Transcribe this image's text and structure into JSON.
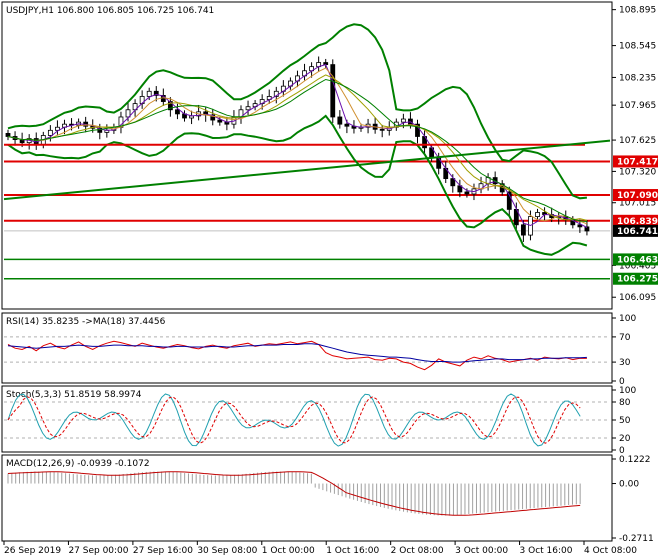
{
  "chart_data": [
    {
      "type": "candlestick",
      "title": "USDJPY,H1  106.800 106.805 106.725 106.741",
      "ylim": [
        105.99,
        108.95
      ],
      "y_ticks": [
        "108.895",
        "108.545",
        "108.235",
        "107.965",
        "107.625",
        "107.320",
        "107.015",
        "106.405",
        "106.095"
      ],
      "price_levels": [
        {
          "value": 107.417,
          "label": "107.417",
          "color": "#e00000"
        },
        {
          "value": 107.09,
          "label": "107.090",
          "color": "#e00000"
        },
        {
          "value": 106.839,
          "label": "106.839",
          "color": "#e00000"
        },
        {
          "value": 106.741,
          "label": "106.741",
          "color": "#000000"
        },
        {
          "value": 106.463,
          "label": "106.463",
          "color": "#008000"
        },
        {
          "value": 106.275,
          "label": "106.275",
          "color": "#008000"
        }
      ],
      "close_series": [
        107.66,
        107.63,
        107.6,
        107.64,
        107.58,
        107.67,
        107.72,
        107.75,
        107.78,
        107.77,
        107.8,
        107.76,
        107.74,
        107.7,
        107.72,
        107.75,
        107.85,
        107.92,
        107.98,
        108.05,
        108.1,
        108.06,
        108.0,
        107.92,
        107.88,
        107.84,
        107.86,
        107.9,
        107.87,
        107.82,
        107.8,
        107.78,
        107.85,
        107.92,
        107.95,
        107.98,
        108.02,
        108.05,
        108.1,
        108.15,
        108.2,
        108.25,
        108.3,
        108.34,
        108.38,
        108.36,
        107.85,
        107.78,
        107.76,
        107.74,
        107.75,
        107.78,
        107.73,
        107.72,
        107.75,
        107.8,
        107.83,
        107.78,
        107.66,
        107.55,
        107.45,
        107.35,
        107.25,
        107.18,
        107.12,
        107.1,
        107.15,
        107.2,
        107.26,
        107.2,
        107.12,
        106.95,
        106.8,
        106.7,
        106.88,
        106.92,
        106.9,
        106.87,
        106.88,
        106.85,
        106.8,
        106.78,
        106.74
      ]
    },
    {
      "type": "line",
      "title": "RSI(14) 35.8235  ->MA(18) 37.4456",
      "ylim": [
        0,
        100
      ],
      "y_ticks": [
        "100",
        "70",
        "30",
        "0"
      ],
      "series": [
        {
          "values": [
            58,
            52,
            50,
            55,
            48,
            56,
            60,
            54,
            51,
            57,
            62,
            55,
            50,
            56,
            60,
            63,
            61,
            58,
            55,
            60,
            57,
            54,
            52,
            55,
            58,
            56,
            53,
            51,
            55,
            57,
            54,
            52,
            56,
            58,
            60,
            55,
            57,
            59,
            58,
            60,
            62,
            59,
            61,
            63,
            58,
            45,
            40,
            38,
            35,
            36,
            37,
            38,
            34,
            33,
            36,
            35,
            30,
            28,
            22,
            18,
            25,
            35,
            30,
            27,
            24,
            33,
            38,
            35,
            40,
            36,
            34,
            30,
            32,
            34,
            36,
            33,
            38,
            36,
            35,
            37,
            34,
            36,
            35.8
          ],
          "color": "#e00000"
        },
        {
          "values": [
            56,
            55,
            54,
            53,
            52,
            53,
            54,
            55,
            55,
            56,
            57,
            56,
            55,
            55,
            56,
            57,
            57,
            56,
            56,
            56,
            55,
            55,
            54,
            54,
            55,
            55,
            54,
            54,
            54,
            55,
            55,
            54,
            54,
            55,
            56,
            56,
            57,
            57,
            57,
            58,
            58,
            58,
            59,
            59,
            58,
            55,
            52,
            49,
            46,
            44,
            42,
            41,
            40,
            39,
            38,
            38,
            37,
            36,
            34,
            32,
            31,
            31,
            31,
            30,
            30,
            31,
            32,
            33,
            34,
            35,
            35,
            34,
            34,
            34,
            35,
            35,
            36,
            36,
            36,
            37,
            37,
            37,
            37.4
          ],
          "color": "#0000a0"
        }
      ]
    },
    {
      "type": "line",
      "title": "Stoch(5,3,3) 51.8519 58.9974",
      "ylim": [
        0,
        100
      ],
      "y_ticks": [
        "100",
        "80",
        "50",
        "20",
        "0"
      ]
    },
    {
      "type": "bar",
      "title": "MACD(12,26,9) -0.0939 -0.1072",
      "ylim": [
        -0.2711,
        0.1222
      ],
      "y_ticks": [
        "0.1222",
        "0.00",
        "-0.2711"
      ]
    }
  ],
  "x_labels": [
    "26 Sep 2019",
    "27 Sep 00:00",
    "27 Sep 16:00",
    "30 Sep 08:00",
    "1 Oct 00:00",
    "1 Oct 16:00",
    "2 Oct 08:00",
    "3 Oct 00:00",
    "3 Oct 16:00",
    "4 Oct 08:00"
  ]
}
